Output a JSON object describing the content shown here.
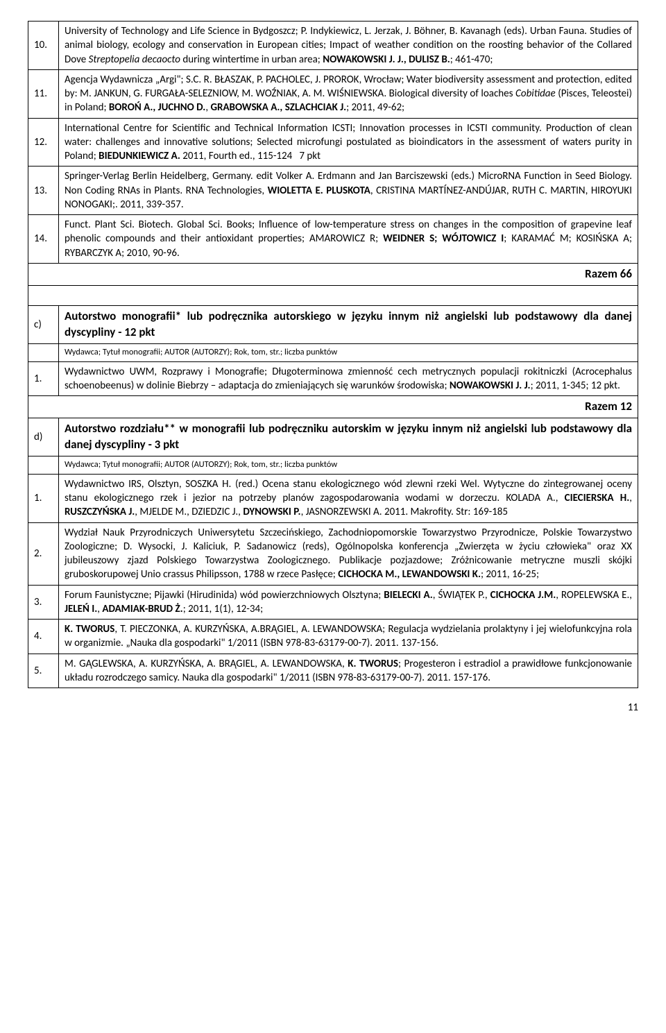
{
  "rowsA": [
    {
      "n": "10.",
      "text": "University of Technology and Life Science in Bydgoszcz; P. Indykiewicz, L. Jerzak, J. Böhner, B. Kavanagh (eds). Urban Fauna. Studies of animal biology, ecology and conservation in European cities; Impact of weather condition on the roosting behavior of the Collared Dove <i>Streptopelia decaocto</i> during wintertime in urban area; <b>NOWAKOWSKI J. J., DULISZ B.</b>; 461-470;"
    },
    {
      "n": "11.",
      "text": "Agencja Wydawnicza „Argi\"; S.C. R. BŁASZAK, P. PACHOLEC, J. PROROK, Wrocław; Water biodiversity assessment and protection, edited by: M. JANKUN, G. FURGAŁA-SELEZNIOW, M. WOŹNIAK, A. M. WIŚNIEWSKA. Biological diversity of loaches <i>Cobitidae</i> (Pisces, Teleostei) in Poland; <b>BOROŃ A., JUCHNO D.</b>, <b>GRABOWSKA A., SZLACHCIAK J.</b>; 2011, 49-62;"
    },
    {
      "n": "12.",
      "text": "International Centre for Scientific and Technical Information ICSTI; Innovation processes in ICSTI community. Production of clean water: challenges and innovative solutions; Selected microfungi postulated as bioindicators in the assessment of waters purity in Poland; <b>BIEDUNKIEWICZ A.</b> 2011, Fourth ed., 115-124&nbsp;&nbsp;&nbsp;7 pkt"
    },
    {
      "n": "13.",
      "text": "Springer-Verlag Berlin Heidelberg, Germany. edit Volker A. Erdmann and Jan Barciszewski (eds.) MicroRNA Function in Seed Biology. Non Coding RNAs in Plants. RNA Technologies, <b>WIOLETTA E. PLUSKOTA</b>, CRISTINA MARTÍNEZ-ANDÚJAR, RUTH C. MARTIN, HIROYUKI NONOGAKI;. 2011, 339-357."
    },
    {
      "n": "14.",
      "text": "Funct. Plant Sci. Biotech. Global Sci. Books;  Influence of low-temperature stress on changes in the composition of grapevine leaf phenolic compounds and their antioxidant properties; AMAROWICZ R;  <b>WEIDNER S; WÓJTOWICZ I</b>;  KARAMAĆ M;  KOSIŃSKA A; RYBARCZYK A; 2010, 90-96."
    }
  ],
  "razemA": "Razem 66",
  "sectionC": {
    "n": "c)",
    "title": "Autorstwo monografii* lub podręcznika autorskiego w języku innym niż angielski lub podstawowy dla danej dyscypliny - 12 pkt",
    "meta": "Wydawca; Tytuł monografii; AUTOR (AUTORZY); Rok, tom, str.; liczba punktów"
  },
  "rowsC": [
    {
      "n": "1.",
      "text": "Wydawnictwo UWM, Rozprawy i Monografie; Długoterminowa zmienność cech metrycznych populacji rokitniczki (Acrocephalus schoenobeenus) w dolinie Biebrzy – adaptacja do zmieniających się warunków środowiska; <b>NOWAKOWSKI J. J.</b>; 2011, 1-345; 12 pkt."
    }
  ],
  "razemC": "Razem 12",
  "sectionD": {
    "n": "d)",
    "title": "Autorstwo rozdziału** w monografii lub podręczniku autorskim w języku innym niż angielski lub podstawowy dla danej dyscypliny - 3 pkt",
    "meta": "Wydawca; Tytuł monografii; AUTOR (AUTORZY); Rok, tom, str.; liczba punktów"
  },
  "rowsD": [
    {
      "n": "1.",
      "text": "Wydawnictwo IRS, Olsztyn, SOSZKA H. (red.) Ocena stanu ekologicznego wód zlewni rzeki Wel. Wytyczne do zintegrowanej oceny stanu ekologicznego rzek i jezior na potrzeby planów zagospodarowania wodami w dorzeczu. KOLADA A., <b>CIECIERSKA H.</b>, <b>RUSZCZYŃSKA J.</b>, MJELDE M., DZIEDZIC J., <b>DYNOWSKI P.</b>, JASNORZEWSKI A. 2011. Makrofity. Str: 169-185"
    },
    {
      "n": "2.",
      "text": "Wydział Nauk Przyrodniczych Uniwersytetu Szczecińskiego, Zachodniopomorskie Towarzystwo Przyrodnicze, Polskie Towarzystwo Zoologiczne; D. Wysocki, J. Kaliciuk, P. Sadanowicz (reds), Ogólnopolska konferencja „Zwierzęta w życiu człowieka\" oraz XX jubileuszowy zjazd Polskiego Towarzystwa Zoologicznego. Publikacje pozjazdowe; Zróżnicowanie metryczne muszli skójki gruboskorupowej Unio crassus Philipsson, 1788 w rzece Pasłęce; <b>CICHOCKA M., LEWANDOWSKI K.</b>; 2011, 16-25;"
    },
    {
      "n": "3.",
      "text": "Forum Faunistyczne; Pijawki (Hirudinida) wód powierzchniowych Olsztyna; <b>BIELECKI A.</b>, ŚWIĄTEK P., <b>CICHOCKA J.M.</b>, ROPELEWSKA E., <b>JELEŃ I.</b>, <b>ADAMIAK-BRUD Ż.</b>; 2011, 1(1), 12-34;"
    },
    {
      "n": "4.",
      "text": "<b>K. TWORUS</b>, T. PIECZONKA, A. KURZYŃSKA, A.BRĄGIEL, A. LEWANDOWSKA; Regulacja wydzielania prolaktyny i jej wielofunkcyjna rola w organizmie. „Nauka dla gospodarki\" 1/2011 (ISBN 978-83-63179-00-7). 2011. 137-156."
    },
    {
      "n": "5.",
      "text": "M. GĄGLEWSKA, A. KURZYŃSKA, A. BRĄGIEL, A. LEWANDOWSKA, <b>K. TWORUS</b>; Progesteron i estradiol a prawidłowe funkcjonowanie układu rozrodczego samicy. Nauka dla gospodarki\" 1/2011 (ISBN 978-83-63179-00-7). 2011. 157-176."
    }
  ],
  "pageNumber": "11"
}
